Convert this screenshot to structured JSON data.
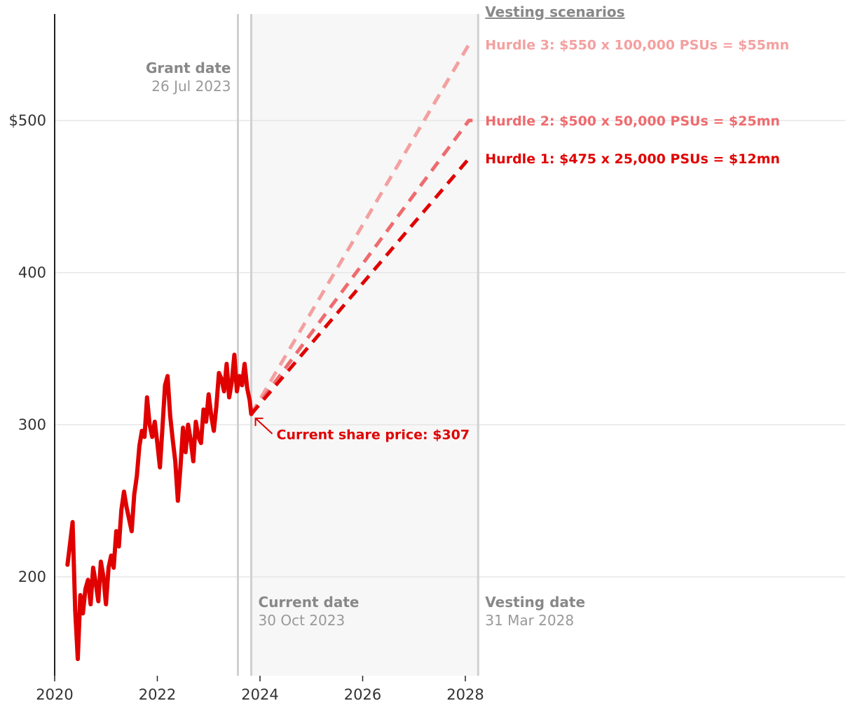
{
  "colors": {
    "price": "#e00000",
    "hurdle1": "#e00000",
    "hurdle2": "#ee6b6e",
    "hurdle3": "#f4a0a0",
    "grid": "#e6e6e6",
    "event_line": "#d0d0d0",
    "shade": "#f7f7f7"
  },
  "chart_data": {
    "type": "line",
    "xlim": [
      2020.0,
      2035.4
    ],
    "ylim": [
      135,
      570
    ],
    "x_ticks": [
      {
        "value": 2020,
        "label": "2020"
      },
      {
        "value": 2022,
        "label": "2022"
      },
      {
        "value": 2024,
        "label": "2024"
      },
      {
        "value": 2026,
        "label": "2026"
      },
      {
        "value": 2028,
        "label": "2028"
      }
    ],
    "y_ticks": [
      {
        "value": 200,
        "label": "200"
      },
      {
        "value": 300,
        "label": "300"
      },
      {
        "value": 400,
        "label": "400"
      },
      {
        "value": 500,
        "label": "$500"
      }
    ],
    "events": {
      "grant": {
        "x": 2023.57,
        "title": "Grant date",
        "date": "26 Jul 2023"
      },
      "current": {
        "x": 2023.83,
        "title": "Current date",
        "date": "30 Oct 2023"
      },
      "vesting": {
        "x": 2028.25,
        "title": "Vesting date",
        "date": "31 Mar 2028"
      }
    },
    "current_price": {
      "x": 2023.83,
      "value": 307,
      "label": "Current share price: $307"
    },
    "scenarios_title": "Vesting scenarios",
    "hurdles": [
      {
        "name": "Hurdle 1",
        "price": 475,
        "label": "Hurdle 1: $475 x   25,000 PSUs = $12mn",
        "color_key": "hurdle1"
      },
      {
        "name": "Hurdle 2",
        "price": 500,
        "label": "Hurdle 2: $500 x   50,000 PSUs = $25mn",
        "color_key": "hurdle2"
      },
      {
        "name": "Hurdle 3",
        "price": 550,
        "label": "Hurdle 3: $550 x 100,000 PSUs = $55mn",
        "color_key": "hurdle3"
      }
    ],
    "series": [
      {
        "name": "Share price",
        "x": [
          2020.25,
          2020.3,
          2020.35,
          2020.4,
          2020.45,
          2020.5,
          2020.55,
          2020.6,
          2020.65,
          2020.7,
          2020.75,
          2020.8,
          2020.85,
          2020.9,
          2020.95,
          2021.0,
          2021.05,
          2021.1,
          2021.15,
          2021.2,
          2021.25,
          2021.3,
          2021.35,
          2021.4,
          2021.45,
          2021.5,
          2021.55,
          2021.6,
          2021.65,
          2021.7,
          2021.75,
          2021.8,
          2021.85,
          2021.9,
          2021.95,
          2022.0,
          2022.05,
          2022.1,
          2022.15,
          2022.2,
          2022.25,
          2022.3,
          2022.35,
          2022.4,
          2022.45,
          2022.5,
          2022.55,
          2022.6,
          2022.65,
          2022.7,
          2022.75,
          2022.8,
          2022.85,
          2022.9,
          2022.95,
          2023.0,
          2023.05,
          2023.1,
          2023.15,
          2023.2,
          2023.25,
          2023.3,
          2023.35,
          2023.4,
          2023.45,
          2023.5,
          2023.55,
          2023.6,
          2023.65,
          2023.7,
          2023.75,
          2023.8,
          2023.83
        ],
        "values": [
          208,
          222,
          236,
          178,
          146,
          188,
          176,
          192,
          198,
          182,
          206,
          196,
          184,
          210,
          200,
          182,
          206,
          214,
          206,
          230,
          220,
          244,
          256,
          246,
          238,
          230,
          254,
          266,
          286,
          296,
          292,
          318,
          300,
          292,
          302,
          288,
          272,
          298,
          326,
          332,
          306,
          290,
          276,
          250,
          272,
          298,
          282,
          300,
          290,
          276,
          302,
          292,
          288,
          310,
          302,
          320,
          306,
          296,
          312,
          334,
          330,
          322,
          340,
          318,
          328,
          346,
          322,
          332,
          326,
          340,
          324,
          316,
          307
        ]
      }
    ]
  }
}
